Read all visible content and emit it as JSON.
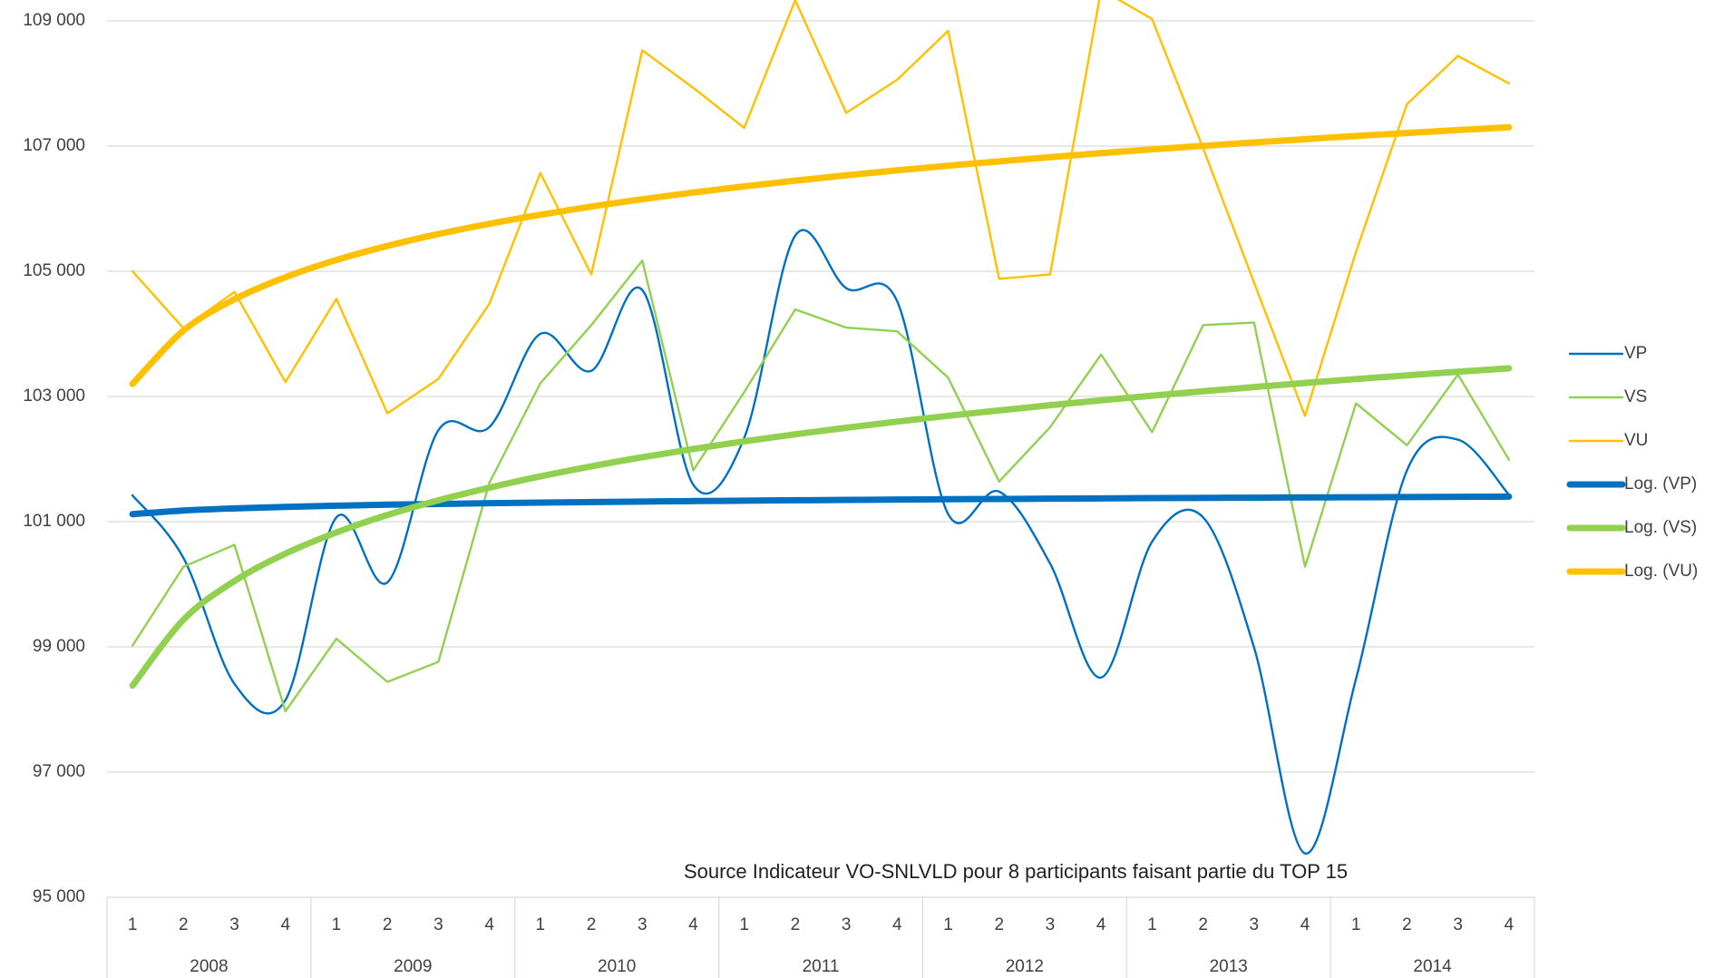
{
  "chart_data": {
    "type": "line",
    "annotation": "Source Indicateur VO-SNLVLD pour 8 participants faisant partie du TOP 15",
    "categories": [
      "1",
      "2",
      "3",
      "4",
      "1",
      "2",
      "3",
      "4",
      "1",
      "2",
      "3",
      "4",
      "1",
      "2",
      "3",
      "4",
      "1",
      "2",
      "3",
      "4",
      "1",
      "2",
      "3",
      "4",
      "1",
      "2",
      "3",
      "4"
    ],
    "groups": [
      "2008",
      "2009",
      "2010",
      "2011",
      "2012",
      "2013",
      "2014"
    ],
    "ylim": [
      95000,
      109000
    ],
    "yticks": [
      {
        "value": 95000,
        "label": "95 000"
      },
      {
        "value": 97000,
        "label": "97 000"
      },
      {
        "value": 99000,
        "label": "99 000"
      },
      {
        "value": 101000,
        "label": "101 000"
      },
      {
        "value": 103000,
        "label": "103 000"
      },
      {
        "value": 105000,
        "label": "105 000"
      },
      {
        "value": 107000,
        "label": "107 000"
      },
      {
        "value": 109000,
        "label": "109 000"
      }
    ],
    "grid": true,
    "legend": "right",
    "series": [
      {
        "name": "VP",
        "color": "#0070c0",
        "smooth": true,
        "values": [
          101420,
          100420,
          98410,
          98150,
          101070,
          100030,
          102460,
          102510,
          104000,
          103410,
          104700,
          101590,
          102340,
          105570,
          104730,
          104520,
          101120,
          101480,
          100330,
          98510,
          100680,
          101070,
          98990,
          95700,
          98490,
          101820,
          102310,
          101430
        ]
      },
      {
        "name": "VS",
        "color": "#92d050",
        "values": [
          99020,
          100280,
          100630,
          97970,
          99130,
          98440,
          98760,
          101620,
          103210,
          104140,
          105170,
          101820,
          103070,
          104390,
          104100,
          104040,
          103300,
          101640,
          102510,
          103670,
          102430,
          104140,
          104180,
          100280,
          102890,
          102220,
          103350,
          101990
        ]
      },
      {
        "name": "VU",
        "color": "#ffc000",
        "values": [
          105000,
          104090,
          104670,
          103230,
          104560,
          102730,
          103280,
          104480,
          106570,
          104950,
          108530,
          107930,
          107290,
          109330,
          107530,
          108060,
          108840,
          104880,
          104950,
          109500,
          109030,
          106970,
          104820,
          102690,
          105310,
          107670,
          108440,
          108000
        ]
      },
      {
        "name": "Log. (VP)",
        "color": "#0070c0",
        "trend": true,
        "values": [
          101120,
          101178,
          101212,
          101236,
          101255,
          101271,
          101283,
          101295,
          101305,
          101313,
          101321,
          101329,
          101335,
          101342,
          101347,
          101353,
          101358,
          101363,
          101367,
          101372,
          101376,
          101380,
          101383,
          101387,
          101390,
          101394,
          101397,
          101400
        ]
      },
      {
        "name": "Log. (VS)",
        "color": "#92d050",
        "trend": true,
        "values": [
          98380,
          99434,
          100052,
          100489,
          100828,
          101107,
          101341,
          101543,
          101723,
          101884,
          102029,
          102161,
          102283,
          102396,
          102500,
          102599,
          102691,
          102777,
          102860,
          102939,
          103013,
          103083,
          103150,
          103216,
          103278,
          103337,
          103395,
          103450
        ]
      },
      {
        "name": "Log. (VU)",
        "color": "#ffc000",
        "trend": true,
        "values": [
          103200,
          104053,
          104552,
          104905,
          105180,
          105405,
          105595,
          105758,
          105903,
          106034,
          106151,
          106258,
          106356,
          106447,
          106532,
          106612,
          106686,
          106756,
          106823,
          106887,
          106947,
          107003,
          107058,
          107111,
          107161,
          107209,
          107256,
          107300
        ]
      }
    ]
  }
}
